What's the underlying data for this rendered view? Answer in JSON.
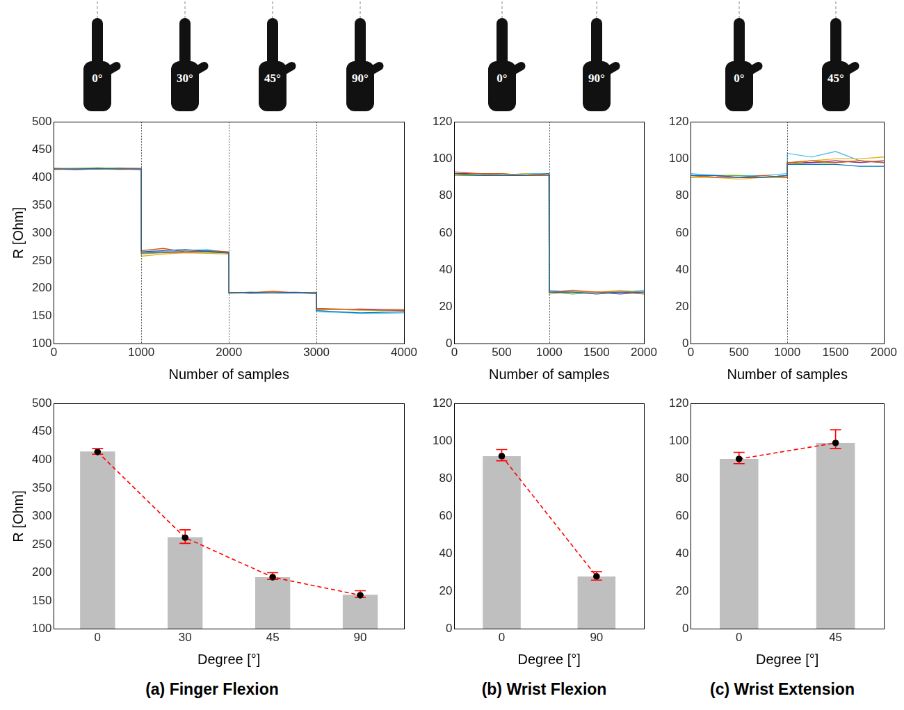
{
  "chart_data": [
    {
      "type": "line",
      "xlabel": "Number of samples",
      "ylabel": "R [Ohm]",
      "x": [
        0,
        250,
        500,
        750,
        999,
        1000,
        1250,
        1500,
        1750,
        1999,
        2000,
        2250,
        2500,
        2750,
        2999,
        3000,
        3250,
        3500,
        3750,
        4000
      ],
      "series": [
        {
          "color": "#0072BD",
          "values": [
            415,
            415,
            416,
            415,
            415,
            266,
            268,
            270,
            267,
            264,
            192,
            193,
            192,
            193,
            192,
            160,
            158,
            156,
            157,
            158
          ]
        },
        {
          "color": "#D95319",
          "values": [
            416,
            415,
            415,
            416,
            416,
            268,
            272,
            266,
            268,
            266,
            193,
            192,
            195,
            192,
            191,
            164,
            163,
            162,
            161,
            160
          ]
        },
        {
          "color": "#EDB120",
          "values": [
            414,
            415,
            415,
            414,
            415,
            258,
            262,
            264,
            263,
            262,
            191,
            192,
            193,
            193,
            192,
            162,
            162,
            161,
            161,
            161
          ]
        },
        {
          "color": "#7E2F8E",
          "values": [
            415,
            414,
            415,
            415,
            414,
            265,
            266,
            265,
            267,
            263,
            193,
            191,
            192,
            192,
            191,
            163,
            162,
            163,
            162,
            162
          ]
        },
        {
          "color": "#77AC30",
          "values": [
            416,
            416,
            417,
            416,
            415,
            263,
            264,
            266,
            265,
            264,
            192,
            193,
            193,
            192,
            193,
            161,
            162,
            161,
            160,
            161
          ]
        },
        {
          "color": "#4DBEEE",
          "values": [
            415,
            416,
            416,
            417,
            416,
            262,
            265,
            268,
            270,
            265,
            191,
            193,
            192,
            192,
            191,
            158,
            157,
            155,
            155,
            156
          ]
        }
      ],
      "boundaries": [
        1000,
        2000,
        3000
      ],
      "xlim": [
        0,
        4000
      ],
      "xticks": [
        0,
        1000,
        2000,
        3000,
        4000
      ],
      "ylim": [
        100,
        500
      ],
      "yticks": [
        100,
        150,
        200,
        250,
        300,
        350,
        400,
        450,
        500
      ],
      "grid": false
    },
    {
      "type": "bar",
      "xlabel": "Degree [°]",
      "ylabel": "R [Ohm]",
      "categories": [
        "0",
        "30",
        "45",
        "90"
      ],
      "series": [
        {
          "type": "bar",
          "color": "#bfbfbf",
          "values": [
            415,
            263,
            192,
            161
          ]
        },
        {
          "type": "line",
          "color": "#ff0000",
          "line_style": "dashed",
          "marker": "circle",
          "values": [
            414,
            262,
            192,
            160
          ],
          "error_min": [
            410,
            252,
            188,
            156
          ],
          "error_max": [
            420,
            276,
            200,
            168
          ]
        }
      ],
      "ylim": [
        100,
        500
      ],
      "yticks": [
        100,
        150,
        200,
        250,
        300,
        350,
        400,
        450,
        500
      ],
      "grid": false
    },
    {
      "type": "line",
      "xlabel": "Number of samples",
      "x": [
        0,
        250,
        500,
        750,
        999,
        1000,
        1250,
        1500,
        1750,
        2000
      ],
      "series": [
        {
          "color": "#0072BD",
          "values": [
            92,
            91,
            91,
            91,
            92,
            28,
            28,
            27,
            28,
            28
          ]
        },
        {
          "color": "#D95319",
          "values": [
            93,
            92,
            92,
            91,
            91,
            28,
            29,
            28,
            28,
            27
          ]
        },
        {
          "color": "#EDB120",
          "values": [
            91,
            92,
            91,
            92,
            91,
            27,
            28,
            28,
            29,
            28
          ]
        },
        {
          "color": "#7E2F8E",
          "values": [
            92,
            92,
            91,
            91,
            91,
            28,
            28,
            28,
            27,
            28
          ]
        },
        {
          "color": "#77AC30",
          "values": [
            91,
            91,
            92,
            91,
            91,
            28,
            27,
            28,
            28,
            28
          ]
        },
        {
          "color": "#4DBEEE",
          "values": [
            92,
            91,
            91,
            92,
            92,
            29,
            28,
            28,
            28,
            29
          ]
        }
      ],
      "boundaries": [
        1000
      ],
      "xlim": [
        0,
        2000
      ],
      "xticks": [
        0,
        500,
        1000,
        1500,
        2000
      ],
      "ylim": [
        0,
        120
      ],
      "yticks": [
        0,
        20,
        40,
        60,
        80,
        100,
        120
      ],
      "grid": false
    },
    {
      "type": "bar",
      "xlabel": "Degree [°]",
      "categories": [
        "0",
        "90"
      ],
      "series": [
        {
          "type": "bar",
          "color": "#bfbfbf",
          "values": [
            92,
            28
          ]
        },
        {
          "type": "line",
          "color": "#ff0000",
          "line_style": "dashed",
          "marker": "circle",
          "values": [
            92,
            28
          ],
          "error_min": [
            89.5,
            26
          ],
          "error_max": [
            95.5,
            30.5
          ]
        }
      ],
      "ylim": [
        0,
        120
      ],
      "yticks": [
        0,
        20,
        40,
        60,
        80,
        100,
        120
      ],
      "grid": false
    },
    {
      "type": "line",
      "xlabel": "Number of samples",
      "x": [
        0,
        250,
        500,
        750,
        999,
        1000,
        1250,
        1500,
        1750,
        2000
      ],
      "series": [
        {
          "color": "#0072BD",
          "values": [
            91,
            91,
            90,
            90,
            91,
            97,
            97,
            97,
            96,
            96
          ]
        },
        {
          "color": "#D95319",
          "values": [
            91,
            90,
            90,
            91,
            90,
            98,
            99,
            98,
            99,
            98
          ]
        },
        {
          "color": "#EDB120",
          "values": [
            90,
            90,
            89,
            90,
            90,
            97,
            99,
            100,
            100,
            101
          ]
        },
        {
          "color": "#7E2F8E",
          "values": [
            91,
            91,
            90,
            90,
            91,
            98,
            98,
            99,
            98,
            99
          ]
        },
        {
          "color": "#77AC30",
          "values": [
            90,
            91,
            91,
            90,
            90,
            97,
            98,
            98,
            99,
            98
          ]
        },
        {
          "color": "#4DBEEE",
          "values": [
            92,
            91,
            91,
            91,
            92,
            103,
            101,
            104,
            99,
            98
          ]
        }
      ],
      "boundaries": [
        1000
      ],
      "xlim": [
        0,
        2000
      ],
      "xticks": [
        0,
        500,
        1000,
        1500,
        2000
      ],
      "ylim": [
        0,
        120
      ],
      "yticks": [
        0,
        20,
        40,
        60,
        80,
        100,
        120
      ],
      "grid": false
    },
    {
      "type": "bar",
      "xlabel": "Degree [°]",
      "categories": [
        "0",
        "45"
      ],
      "series": [
        {
          "type": "bar",
          "color": "#bfbfbf",
          "values": [
            90.5,
            99
          ]
        },
        {
          "type": "line",
          "color": "#ff0000",
          "line_style": "dashed",
          "marker": "circle",
          "values": [
            90.5,
            99
          ],
          "error_min": [
            88,
            96
          ],
          "error_max": [
            94,
            106
          ]
        }
      ],
      "ylim": [
        0,
        120
      ],
      "yticks": [
        0,
        20,
        40,
        60,
        80,
        100,
        120
      ],
      "grid": false
    }
  ],
  "columns": [
    {
      "title": "(a) Finger Flexion",
      "poses": [
        "0°",
        "30°",
        "45°",
        "90°"
      ]
    },
    {
      "title": "(b) Wrist Flexion",
      "poses": [
        "0°",
        "90°"
      ]
    },
    {
      "title": "(c) Wrist Extension",
      "poses": [
        "0°",
        "45°"
      ]
    }
  ]
}
